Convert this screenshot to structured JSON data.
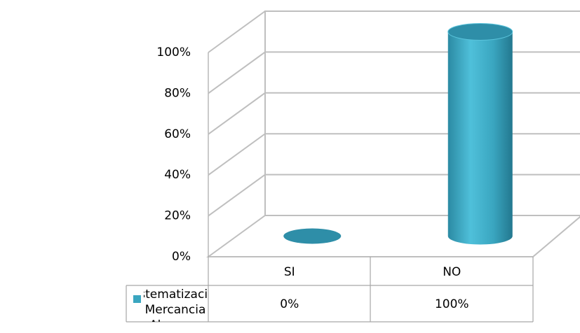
{
  "chart_data": {
    "type": "bar3d",
    "categories": [
      "SI",
      "NO"
    ],
    "series": [
      {
        "name": "Sistematizacion de Mercancia en Almacen",
        "color": "#3aa6c0",
        "values": [
          0,
          100
        ],
        "value_labels": [
          "0%",
          "100%"
        ]
      }
    ],
    "ylim": [
      0,
      100
    ],
    "yticks": [
      {
        "value": 0,
        "label": "0%"
      },
      {
        "value": 20,
        "label": "20%"
      },
      {
        "value": 40,
        "label": "40%"
      },
      {
        "value": 60,
        "label": "60%"
      },
      {
        "value": 80,
        "label": "80%"
      },
      {
        "value": 100,
        "label": "100%"
      }
    ],
    "grid": true
  }
}
